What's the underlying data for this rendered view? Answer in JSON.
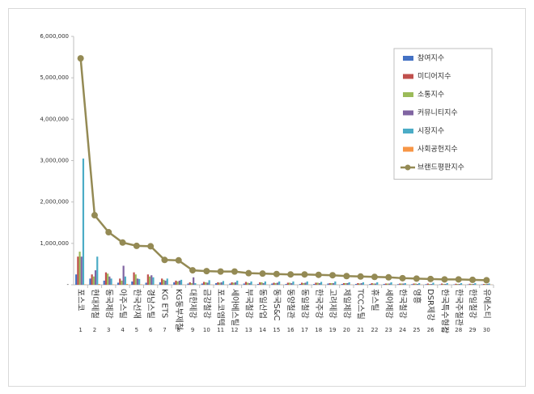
{
  "chart_data": {
    "type": "bar-line",
    "categories": [
      "포스코",
      "현대제철",
      "동국제강",
      "아주스틸",
      "한국선재",
      "경남스틸",
      "KG ETS",
      "KG동부제철",
      "대한제강",
      "금강철강",
      "포스코엠텍",
      "세아베스틸",
      "부국철강",
      "동일산업",
      "동국S&C",
      "동양철관",
      "동일철강",
      "한국주강",
      "고려제강",
      "제일제강",
      "TCC스틸",
      "휴스틸",
      "세아제강",
      "한국철강",
      "영흥",
      "DSR제강",
      "한국특수형강",
      "한국주철관",
      "한일철강",
      "유에스티"
    ],
    "ranks": [
      1,
      2,
      3,
      4,
      5,
      6,
      7,
      8,
      9,
      10,
      11,
      12,
      13,
      14,
      15,
      16,
      17,
      18,
      19,
      20,
      21,
      22,
      23,
      24,
      25,
      26,
      27,
      28,
      29,
      30
    ],
    "series": [
      {
        "name": "참여지수",
        "color": "#4472c4",
        "values": [
          250000,
          150000,
          100000,
          50000,
          80000,
          50000,
          60000,
          60000,
          30000,
          30000,
          40000,
          30000,
          30000,
          20000,
          30000,
          20000,
          20000,
          20000,
          30000,
          20000,
          20000,
          20000,
          20000,
          15000,
          15000,
          15000,
          10000,
          10000,
          10000,
          10000
        ]
      },
      {
        "name": "미디어지수",
        "color": "#c0504d",
        "values": [
          680000,
          250000,
          300000,
          150000,
          300000,
          250000,
          150000,
          100000,
          60000,
          70000,
          60000,
          60000,
          70000,
          60000,
          50000,
          50000,
          50000,
          50000,
          40000,
          40000,
          40000,
          40000,
          30000,
          30000,
          30000,
          30000,
          30000,
          25000,
          25000,
          20000
        ]
      },
      {
        "name": "소통지수",
        "color": "#9bbb59",
        "values": [
          800000,
          200000,
          270000,
          100000,
          250000,
          200000,
          120000,
          80000,
          40000,
          60000,
          50000,
          50000,
          50000,
          60000,
          40000,
          50000,
          40000,
          50000,
          40000,
          40000,
          30000,
          30000,
          30000,
          30000,
          30000,
          20000,
          20000,
          20000,
          20000,
          20000
        ]
      },
      {
        "name": "커뮤니티지수",
        "color": "#8064a2",
        "values": [
          680000,
          350000,
          200000,
          460000,
          150000,
          230000,
          100000,
          100000,
          180000,
          50000,
          60000,
          60000,
          40000,
          40000,
          50000,
          40000,
          50000,
          40000,
          40000,
          40000,
          40000,
          30000,
          30000,
          30000,
          20000,
          20000,
          20000,
          20000,
          20000,
          20000
        ]
      },
      {
        "name": "시장지수",
        "color": "#4bacc6",
        "values": [
          3050000,
          680000,
          150000,
          200000,
          140000,
          180000,
          150000,
          120000,
          40000,
          110000,
          90000,
          100000,
          80000,
          80000,
          80000,
          80000,
          80000,
          70000,
          80000,
          60000,
          60000,
          60000,
          60000,
          40000,
          40000,
          50000,
          40000,
          40000,
          40000,
          30000
        ]
      },
      {
        "name": "사회공헌지수",
        "color": "#f79646",
        "values": [
          10000,
          20000,
          10000,
          20000,
          10000,
          10000,
          5000,
          5000,
          5000,
          5000,
          5000,
          5000,
          5000,
          5000,
          5000,
          5000,
          5000,
          5000,
          5000,
          5000,
          5000,
          5000,
          5000,
          5000,
          5000,
          5000,
          5000,
          5000,
          5000,
          5000
        ]
      },
      {
        "name": "브랜드평판지수",
        "color": "#948a54",
        "type": "line",
        "values": [
          5470000,
          1680000,
          1270000,
          1020000,
          940000,
          930000,
          600000,
          590000,
          350000,
          330000,
          320000,
          320000,
          280000,
          270000,
          260000,
          250000,
          250000,
          240000,
          230000,
          210000,
          200000,
          190000,
          180000,
          160000,
          150000,
          140000,
          130000,
          130000,
          120000,
          110000
        ]
      }
    ],
    "ylim": [
      0,
      6000000
    ],
    "yticks": [
      {
        "value": 0,
        "label": "-"
      },
      {
        "value": 1000000,
        "label": "1,000,000"
      },
      {
        "value": 2000000,
        "label": "2,000,000"
      },
      {
        "value": 3000000,
        "label": "3,000,000"
      },
      {
        "value": 4000000,
        "label": "4,000,000"
      },
      {
        "value": 5000000,
        "label": "5,000,000"
      },
      {
        "value": 6000000,
        "label": "6,000,000"
      }
    ],
    "grid": false,
    "legend": "top-right"
  }
}
